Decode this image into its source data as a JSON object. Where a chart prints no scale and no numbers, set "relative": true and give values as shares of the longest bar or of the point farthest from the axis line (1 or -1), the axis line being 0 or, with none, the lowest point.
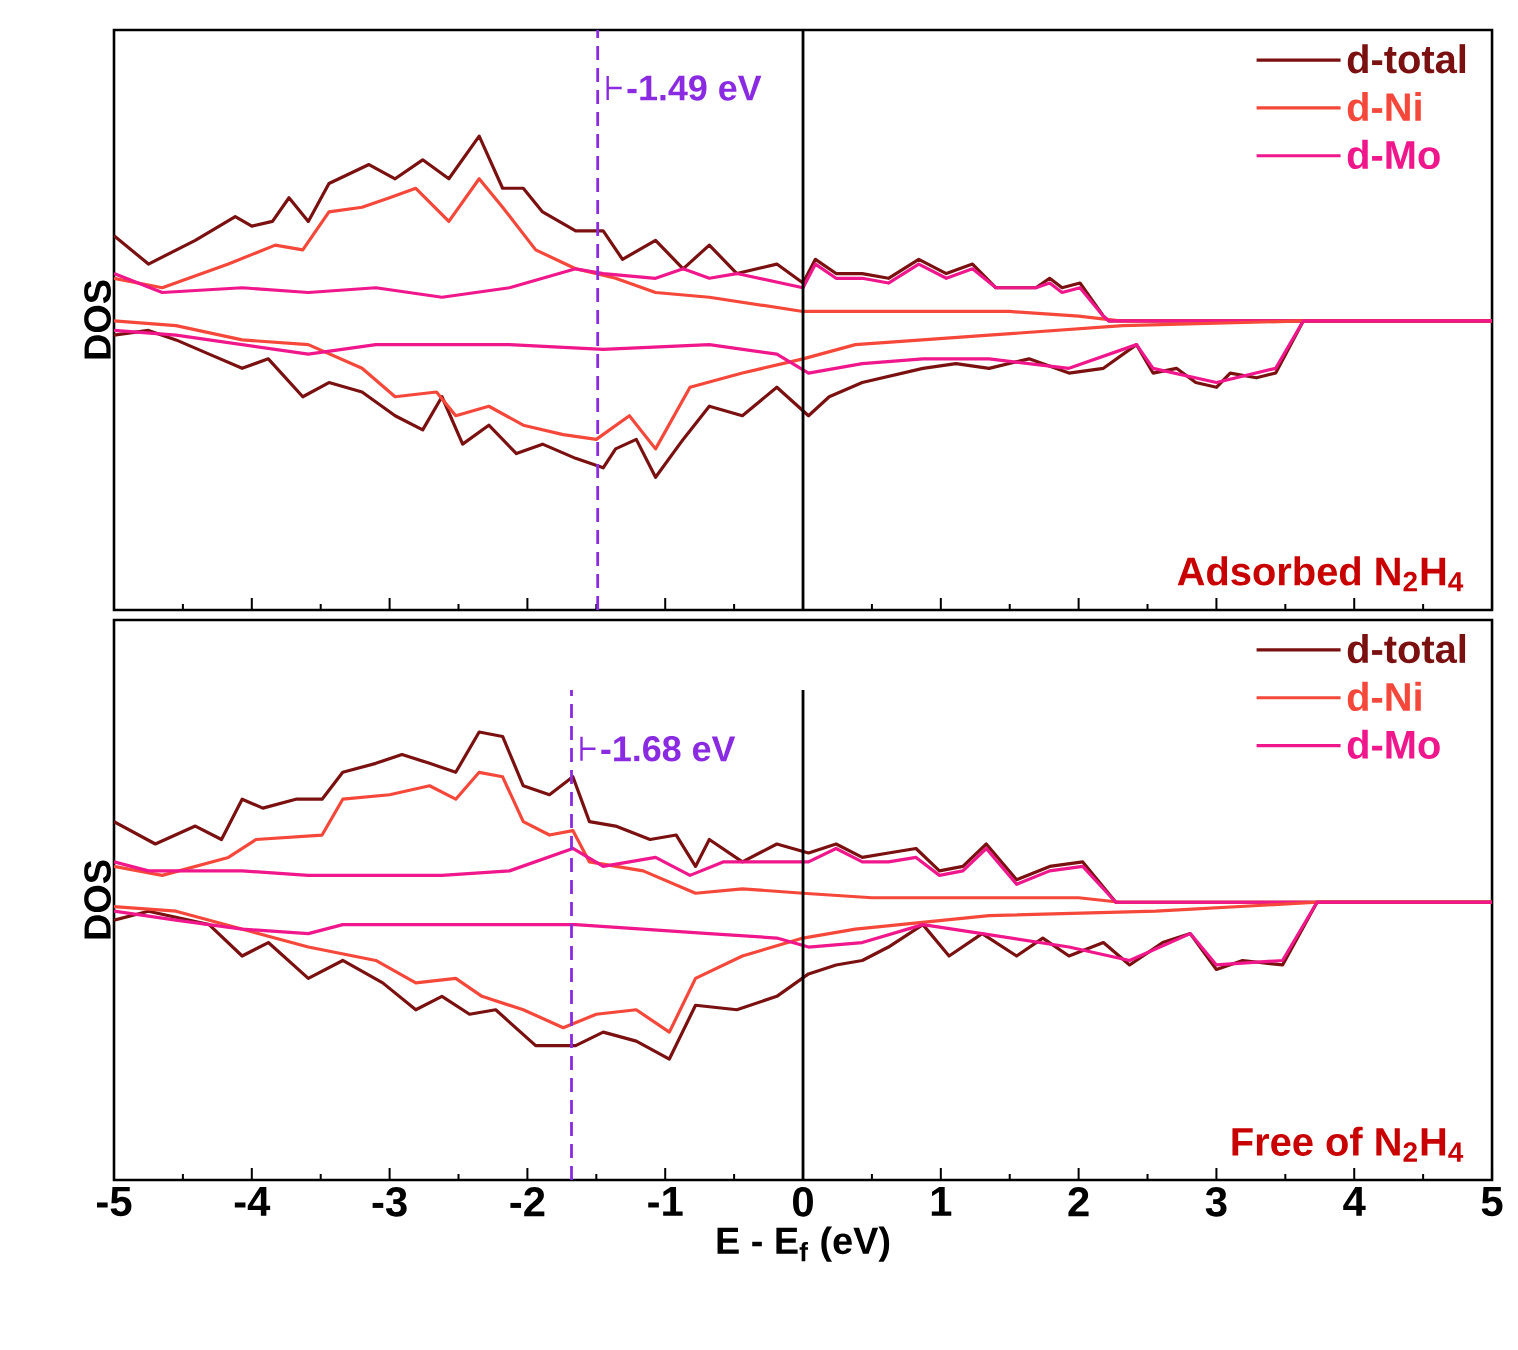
{
  "chart_data": [
    {
      "type": "line",
      "relative": true,
      "ylabel": "DOS",
      "xlim": [
        -5,
        5
      ],
      "xticks": [
        -5,
        -4,
        -3,
        -2,
        -1,
        0,
        1,
        2,
        3,
        4,
        5
      ],
      "tick_labels": false,
      "legend": "top right",
      "series": [
        {
          "name": "d-total",
          "color": "#7a1010",
          "x": [
            -5.0,
            -4.75,
            -4.41,
            -4.12,
            -4.0,
            -3.85,
            -3.73,
            -3.59,
            -3.44,
            -3.15,
            -2.96,
            -2.76,
            -2.57,
            -2.35,
            -2.18,
            -2.03,
            -1.89,
            -1.65,
            -1.45,
            -1.31,
            -1.07,
            -0.87,
            -0.68,
            -0.48,
            -0.19,
            0.0,
            0.09,
            0.24,
            0.43,
            0.62,
            0.84,
            1.04,
            1.23,
            1.4,
            1.69,
            1.79,
            1.88,
            2.01,
            2.18,
            2.22,
            5
          ],
          "values": [
            0.79,
            0.73,
            0.78,
            0.83,
            0.81,
            0.82,
            0.87,
            0.82,
            0.9,
            0.94,
            0.91,
            0.95,
            0.91,
            1,
            0.89,
            0.89,
            0.84,
            0.8,
            0.8,
            0.74,
            0.78,
            0.72,
            0.77,
            0.71,
            0.73,
            0.69,
            0.74,
            0.71,
            0.71,
            0.7,
            0.74,
            0.71,
            0.73,
            0.68,
            0.68,
            0.7,
            0.68,
            0.69,
            0.62,
            0.61,
            0.61
          ]
        },
        {
          "name": "d-Ni",
          "color": "#f5483a",
          "x": [
            -5.0,
            -4.65,
            -4.17,
            -3.83,
            -3.63,
            -3.44,
            -3.2,
            -3.0,
            -2.81,
            -2.57,
            -2.35,
            -2.18,
            -1.94,
            -1.65,
            -1.36,
            -1.07,
            -0.68,
            0.0,
            0.5,
            1.0,
            1.5,
            2.0,
            2.3,
            5
          ],
          "values": [
            0.7,
            0.68,
            0.73,
            0.77,
            0.76,
            0.84,
            0.85,
            0.87,
            0.89,
            0.82,
            0.91,
            0.85,
            0.76,
            0.72,
            0.7,
            0.67,
            0.66,
            0.63,
            0.63,
            0.63,
            0.63,
            0.62,
            0.61,
            0.61
          ]
        },
        {
          "name": "d-Mo",
          "color": "#f0168c",
          "x": [
            -5.0,
            -4.65,
            -4.07,
            -3.59,
            -3.1,
            -2.62,
            -2.13,
            -1.65,
            -1.45,
            -1.07,
            -0.87,
            -0.68,
            -0.48,
            0.0,
            0.09,
            0.24,
            0.43,
            0.62,
            0.84,
            1.04,
            1.23,
            1.4,
            1.69,
            1.79,
            1.88,
            2.01,
            2.18,
            2.22,
            5
          ],
          "values": [
            0.71,
            0.67,
            0.68,
            0.67,
            0.68,
            0.66,
            0.68,
            0.72,
            0.71,
            0.7,
            0.72,
            0.7,
            0.71,
            0.68,
            0.73,
            0.7,
            0.7,
            0.69,
            0.73,
            0.7,
            0.72,
            0.68,
            0.68,
            0.69,
            0.67,
            0.68,
            0.62,
            0.61,
            0.61
          ]
        },
        {
          "color": "#7a1010",
          "x": [
            -5.0,
            -4.75,
            -4.55,
            -4.31,
            -4.07,
            -3.88,
            -3.63,
            -3.44,
            -3.2,
            -2.96,
            -2.76,
            -2.62,
            -2.47,
            -2.28,
            -2.08,
            -1.89,
            -1.65,
            -1.45,
            -1.36,
            -1.21,
            -1.07,
            -0.87,
            -0.68,
            -0.44,
            -0.19,
            0.04,
            0.19,
            0.43,
            0.87,
            1.11,
            1.35,
            1.64,
            1.93,
            2.18,
            2.42,
            2.54,
            2.71,
            2.85,
            3.0,
            3.1,
            3.29,
            3.43,
            3.63,
            5
          ],
          "values": [
            0.58,
            0.59,
            0.57,
            0.54,
            0.51,
            0.53,
            0.45,
            0.48,
            0.46,
            0.41,
            0.38,
            0.45,
            0.35,
            0.39,
            0.33,
            0.35,
            0.32,
            0.3,
            0.34,
            0.36,
            0.28,
            0.36,
            0.43,
            0.41,
            0.47,
            0.41,
            0.45,
            0.48,
            0.51,
            0.52,
            0.51,
            0.53,
            0.5,
            0.51,
            0.56,
            0.5,
            0.51,
            0.48,
            0.47,
            0.5,
            0.49,
            0.5,
            0.61,
            0.61
          ]
        },
        {
          "color": "#f5483a",
          "x": [
            -5.0,
            -4.55,
            -4.07,
            -3.59,
            -3.2,
            -2.96,
            -2.66,
            -2.52,
            -2.28,
            -2.03,
            -1.74,
            -1.5,
            -1.26,
            -1.07,
            -0.82,
            -0.44,
            0.0,
            0.38,
            1.35,
            2.32,
            3.63,
            5
          ],
          "values": [
            0.61,
            0.6,
            0.57,
            0.56,
            0.51,
            0.45,
            0.46,
            0.41,
            0.43,
            0.39,
            0.37,
            0.36,
            0.41,
            0.34,
            0.47,
            0.5,
            0.53,
            0.56,
            0.58,
            0.6,
            0.61,
            0.61
          ]
        },
        {
          "color": "#f0168c",
          "x": [
            -5.0,
            -4.55,
            -4.07,
            -3.59,
            -3.1,
            -2.62,
            -2.13,
            -1.45,
            -0.68,
            -0.19,
            0.04,
            0.43,
            0.87,
            1.35,
            1.93,
            2.42,
            2.54,
            3.0,
            3.43,
            3.63,
            5
          ],
          "values": [
            0.59,
            0.58,
            0.56,
            0.54,
            0.56,
            0.56,
            0.56,
            0.55,
            0.56,
            0.54,
            0.5,
            0.52,
            0.53,
            0.53,
            0.51,
            0.56,
            0.51,
            0.48,
            0.51,
            0.61,
            0.61
          ]
        }
      ],
      "ref_lines": [
        {
          "axis": "x",
          "value": -1.49,
          "label": "-1.49 eV",
          "color": "#8a2be2",
          "line_style": "dashed"
        },
        {
          "axis": "x",
          "value": 0,
          "color": "#000000",
          "line_style": "solid"
        }
      ],
      "annotations": [
        "Adsorbed N$_{2}$H$_{4}$"
      ]
    },
    {
      "type": "line",
      "relative": true,
      "xlabel": "E - E$_{f}$ (eV)",
      "ylabel": "DOS",
      "xlim": [
        -5,
        5
      ],
      "xticks": [
        -5,
        -4,
        -3,
        -2,
        -1,
        0,
        1,
        2,
        3,
        4,
        5
      ],
      "tick_labels": "x",
      "legend": "top right",
      "series": [
        {
          "name": "d-total",
          "color": "#7a1010",
          "x": [
            -5.0,
            -4.7,
            -4.41,
            -4.22,
            -4.07,
            -3.92,
            -3.68,
            -3.49,
            -3.34,
            -3.1,
            -2.91,
            -2.71,
            -2.52,
            -2.35,
            -2.18,
            -2.03,
            -1.84,
            -1.67,
            -1.55,
            -1.36,
            -1.11,
            -0.92,
            -0.78,
            -0.68,
            -0.44,
            -0.19,
            0.04,
            0.24,
            0.43,
            0.62,
            0.82,
            0.99,
            1.16,
            1.33,
            1.55,
            1.79,
            2.03,
            2.27,
            5
          ],
          "values": [
            0.8,
            0.75,
            0.79,
            0.76,
            0.85,
            0.83,
            0.85,
            0.85,
            0.91,
            0.93,
            0.95,
            0.93,
            0.91,
            1,
            0.99,
            0.88,
            0.86,
            0.9,
            0.8,
            0.79,
            0.76,
            0.77,
            0.7,
            0.76,
            0.71,
            0.75,
            0.73,
            0.75,
            0.72,
            0.73,
            0.74,
            0.69,
            0.7,
            0.75,
            0.67,
            0.7,
            0.71,
            0.62,
            0.62
          ]
        },
        {
          "name": "d-Ni",
          "color": "#f5483a",
          "x": [
            -5.0,
            -4.65,
            -4.17,
            -3.97,
            -3.49,
            -3.34,
            -3.0,
            -2.71,
            -2.52,
            -2.35,
            -2.18,
            -2.03,
            -1.84,
            -1.67,
            -1.55,
            -1.16,
            -0.78,
            -0.44,
            0.0,
            0.5,
            1.0,
            1.5,
            2.0,
            2.3,
            5
          ],
          "values": [
            0.7,
            0.68,
            0.72,
            0.76,
            0.77,
            0.85,
            0.86,
            0.88,
            0.85,
            0.91,
            0.9,
            0.8,
            0.77,
            0.78,
            0.71,
            0.69,
            0.64,
            0.65,
            0.64,
            0.63,
            0.63,
            0.63,
            0.63,
            0.62,
            0.62
          ]
        },
        {
          "name": "d-Mo",
          "color": "#f0168c",
          "x": [
            -5.0,
            -4.75,
            -4.07,
            -3.59,
            -3.1,
            -2.62,
            -2.13,
            -1.67,
            -1.45,
            -1.07,
            -0.82,
            -0.58,
            -0.19,
            0.04,
            0.24,
            0.43,
            0.62,
            0.82,
            0.99,
            1.16,
            1.33,
            1.55,
            1.79,
            2.03,
            2.27,
            5
          ],
          "values": [
            0.71,
            0.69,
            0.69,
            0.68,
            0.68,
            0.68,
            0.69,
            0.74,
            0.7,
            0.72,
            0.68,
            0.71,
            0.71,
            0.71,
            0.74,
            0.71,
            0.71,
            0.72,
            0.68,
            0.69,
            0.74,
            0.66,
            0.69,
            0.7,
            0.62,
            0.62
          ]
        },
        {
          "color": "#7a1010",
          "x": [
            -5.0,
            -4.75,
            -4.31,
            -4.07,
            -3.88,
            -3.59,
            -3.34,
            -3.05,
            -2.81,
            -2.62,
            -2.42,
            -2.23,
            -1.94,
            -1.65,
            -1.45,
            -1.21,
            -0.97,
            -0.78,
            -0.48,
            -0.19,
            0.04,
            0.24,
            0.43,
            0.62,
            0.87,
            1.06,
            1.3,
            1.55,
            1.74,
            1.93,
            2.18,
            2.37,
            2.61,
            2.81,
            3.0,
            3.19,
            3.48,
            3.73,
            5
          ],
          "values": [
            0.58,
            0.6,
            0.57,
            0.5,
            0.53,
            0.45,
            0.49,
            0.44,
            0.38,
            0.41,
            0.37,
            0.38,
            0.3,
            0.3,
            0.33,
            0.31,
            0.27,
            0.39,
            0.38,
            0.41,
            0.46,
            0.48,
            0.49,
            0.52,
            0.57,
            0.5,
            0.55,
            0.5,
            0.54,
            0.5,
            0.53,
            0.48,
            0.53,
            0.55,
            0.47,
            0.49,
            0.48,
            0.62,
            0.62
          ]
        },
        {
          "color": "#f5483a",
          "x": [
            -5.0,
            -4.55,
            -4.07,
            -3.59,
            -3.1,
            -2.81,
            -2.52,
            -2.33,
            -2.03,
            -1.74,
            -1.5,
            -1.21,
            -0.97,
            -0.78,
            -0.44,
            0.0,
            0.38,
            1.35,
            2.56,
            3.73,
            5
          ],
          "values": [
            0.61,
            0.6,
            0.56,
            0.52,
            0.49,
            0.44,
            0.45,
            0.41,
            0.38,
            0.34,
            0.37,
            0.38,
            0.33,
            0.45,
            0.5,
            0.54,
            0.56,
            0.59,
            0.6,
            0.62,
            0.62
          ]
        },
        {
          "color": "#f0168c",
          "x": [
            -5.0,
            -4.55,
            -4.07,
            -3.59,
            -3.34,
            -2.62,
            -1.65,
            -0.68,
            -0.19,
            0.04,
            0.43,
            0.87,
            1.3,
            1.93,
            2.37,
            2.81,
            3.0,
            3.48,
            3.73,
            5
          ],
          "values": [
            0.6,
            0.58,
            0.56,
            0.55,
            0.57,
            0.57,
            0.57,
            0.55,
            0.54,
            0.52,
            0.53,
            0.57,
            0.55,
            0.52,
            0.49,
            0.55,
            0.48,
            0.49,
            0.62,
            0.62
          ]
        }
      ],
      "ref_lines": [
        {
          "axis": "x",
          "value": -1.68,
          "label": "-1.68 eV",
          "color": "#8a2be2",
          "line_style": "dashed"
        },
        {
          "axis": "x",
          "value": 0,
          "color": "#000000",
          "line_style": "solid"
        }
      ],
      "annotations": [
        "Free of N$_{2}$H$_{4}$"
      ]
    }
  ]
}
